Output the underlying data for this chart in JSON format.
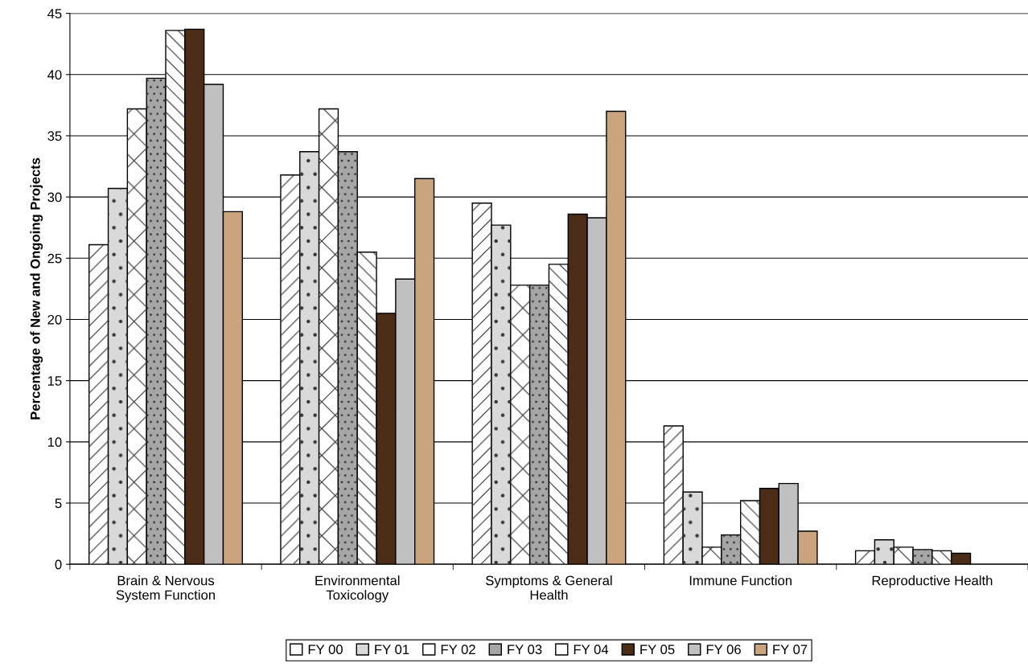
{
  "chart_data": {
    "type": "bar",
    "ylabel": "Percentage of New and Ongoing Projects",
    "categories": [
      "Brain & Nervous\nSystem Function",
      "Environmental\nToxicology",
      "Symptoms & General\nHealth",
      "Immune Function",
      "Reproductive Health"
    ],
    "series": [
      {
        "name": "FY 00",
        "color": "#ffffff",
        "values": [
          26.1,
          31.8,
          29.5,
          11.3,
          1.1
        ]
      },
      {
        "name": "FY 01",
        "color": "#d9d9d9",
        "values": [
          30.7,
          33.7,
          27.7,
          5.9,
          2.0
        ]
      },
      {
        "name": "FY 02",
        "color": "#ffffff",
        "values": [
          37.2,
          37.2,
          22.8,
          1.4,
          1.4
        ]
      },
      {
        "name": "FY 03",
        "color": "#a6a6a6",
        "values": [
          39.7,
          33.7,
          22.8,
          2.4,
          1.2
        ]
      },
      {
        "name": "FY 04",
        "color": "#ffffff",
        "values": [
          43.6,
          25.5,
          24.5,
          5.2,
          1.1
        ]
      },
      {
        "name": "FY 05",
        "color": "#4a2c17",
        "values": [
          43.7,
          20.5,
          28.6,
          6.2,
          0.9
        ]
      },
      {
        "name": "FY 06",
        "color": "#c0c0c0",
        "values": [
          39.2,
          23.3,
          28.3,
          6.6,
          null
        ]
      },
      {
        "name": "FY 07",
        "color": "#c9a47c",
        "values": [
          28.8,
          31.5,
          37.0,
          2.7,
          null
        ]
      }
    ],
    "ylim": [
      0,
      45
    ],
    "yticks": [
      0,
      5,
      10,
      15,
      20,
      25,
      30,
      35,
      40,
      45
    ],
    "grid": "y",
    "legend": "bottom"
  }
}
